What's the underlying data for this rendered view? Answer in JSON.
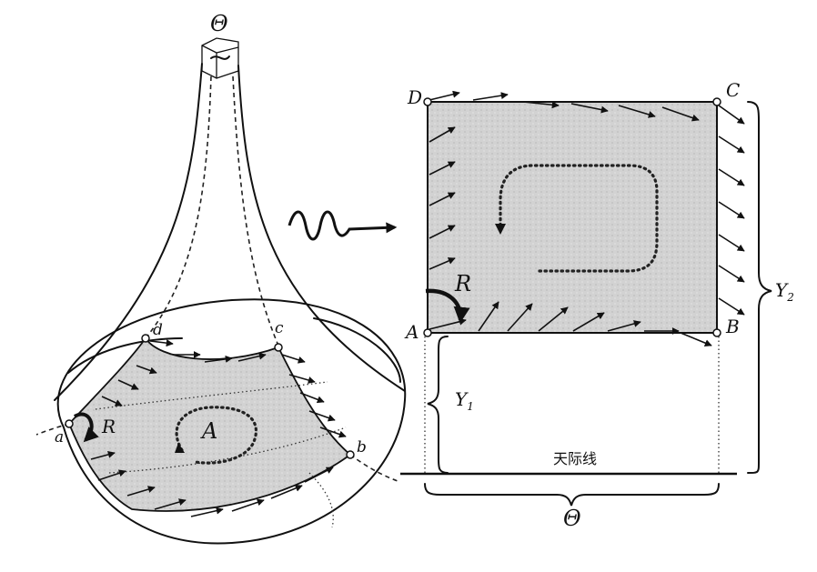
{
  "surface": {
    "theta_label": "Θ",
    "corner_labels": {
      "a": "a",
      "b": "b",
      "c": "c",
      "d": "d"
    },
    "rotation_label": "R",
    "area_label": "A"
  },
  "flat": {
    "corner_labels": {
      "A": "A",
      "B": "B",
      "C": "C",
      "D": "D"
    },
    "rotation_label": "R",
    "y1_label": "Y",
    "y1_sub": "1",
    "y2_label": "Y",
    "y2_sub": "2",
    "horizon_label": "天际线",
    "theta_label": "Θ"
  }
}
